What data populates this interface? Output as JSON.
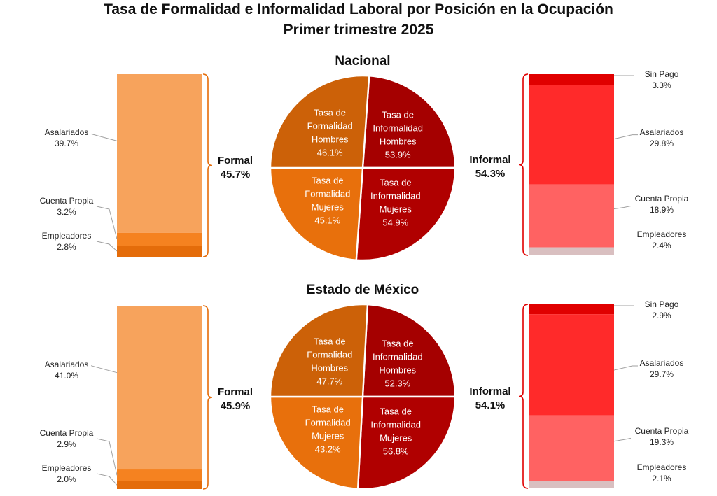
{
  "title": "Tasa de Formalidad e Informalidad Laboral por Posición en la Ocupación",
  "subtitle": "Primer trimestre 2025",
  "colors": {
    "asalariados_formal": "#F7A35C",
    "cuenta_propia_formal": "#F58220",
    "empleadores_formal": "#E46C0A",
    "sin_pago_informal": "#E00000",
    "asalariados_informal": "#FF2A2A",
    "cuenta_propia_informal": "#FF6262",
    "empleadores_informal": "#D9BFC0",
    "formal_hombres": "#CC6108",
    "formal_mujeres": "#E8700C",
    "informal_hombres": "#A50000",
    "informal_mujeres": "#B00000",
    "brace_formal": "#E46C0A",
    "brace_informal": "#E00000"
  },
  "chart_data": [
    {
      "type": "pie",
      "title": "Nacional",
      "slices": [
        {
          "label": "Tasa de Informalidad Hombres",
          "value": 53.9
        },
        {
          "label": "Tasa de Informalidad Mujeres",
          "value": 54.9
        },
        {
          "label": "Tasa de Formalidad Mujeres",
          "value": 45.1
        },
        {
          "label": "Tasa de Formalidad Hombres",
          "value": 46.1
        }
      ],
      "formal": {
        "label": "Formal",
        "value": "45.7%",
        "stack": [
          {
            "label": "Asalariados",
            "value": 39.7
          },
          {
            "label": "Cuenta Propia",
            "value": 3.2
          },
          {
            "label": "Empleadores",
            "value": 2.8
          }
        ]
      },
      "informal": {
        "label": "Informal",
        "value": "54.3%",
        "stack": [
          {
            "label": "Sin Pago",
            "value": 3.3
          },
          {
            "label": "Asalariados",
            "value": 29.8
          },
          {
            "label": "Cuenta Propia",
            "value": 18.9
          },
          {
            "label": "Empleadores",
            "value": 2.4
          }
        ]
      }
    },
    {
      "type": "pie",
      "title": "Estado de México",
      "slices": [
        {
          "label": "Tasa de Informalidad Hombres",
          "value": 52.3
        },
        {
          "label": "Tasa de Informalidad Mujeres",
          "value": 56.8
        },
        {
          "label": "Tasa de Formalidad Mujeres",
          "value": 43.2
        },
        {
          "label": "Tasa de Formalidad Hombres",
          "value": 47.7
        }
      ],
      "formal": {
        "label": "Formal",
        "value": "45.9%",
        "stack": [
          {
            "label": "Asalariados",
            "value": 41.0
          },
          {
            "label": "Cuenta Propia",
            "value": 2.9
          },
          {
            "label": "Empleadores",
            "value": 2.0
          }
        ]
      },
      "informal": {
        "label": "Informal",
        "value": "54.1%",
        "stack": [
          {
            "label": "Sin Pago",
            "value": 2.9
          },
          {
            "label": "Asalariados",
            "value": 29.7
          },
          {
            "label": "Cuenta Propia",
            "value": 19.3
          },
          {
            "label": "Empleadores",
            "value": 2.1
          }
        ]
      }
    }
  ]
}
